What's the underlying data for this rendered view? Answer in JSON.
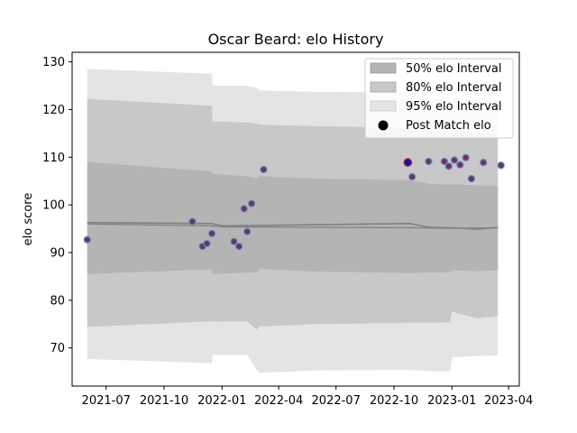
{
  "chart_data": {
    "type": "line",
    "title": "Oscar Beard: elo History",
    "xlabel": "",
    "ylabel": "elo score",
    "x_tick_labels": [
      "2021-07",
      "2021-10",
      "2022-01",
      "2022-04",
      "2022-07",
      "2022-10",
      "2023-01",
      "2023-04"
    ],
    "x_ticks": [
      "2021-07-01",
      "2021-10-01",
      "2022-01-01",
      "2022-04-01",
      "2022-07-01",
      "2022-10-01",
      "2023-01-01",
      "2023-04-01"
    ],
    "xlim": [
      "2021-05-08",
      "2023-04-18"
    ],
    "ylim": [
      62,
      132
    ],
    "y_ticks": [
      70,
      80,
      90,
      100,
      110,
      120,
      130
    ],
    "grid": false,
    "legend_position": "top-right",
    "legend": [
      "50% elo Interval",
      "80% elo Interval",
      "95% elo Interval",
      "Post Match elo"
    ],
    "colors": {
      "band50": "#b4b4b4",
      "band80": "#c8c8c8",
      "band95": "#e4e4e4",
      "center_line": "#808080",
      "point_fill": "#6b3366",
      "point_edge": "#6f8fc0",
      "highlight_point": "#1010aa"
    },
    "center_line": {
      "x": [
        "2021-06-01",
        "2021-12-15",
        "2022-01-01",
        "2022-03-01",
        "2022-10-25",
        "2022-11-28",
        "2023-01-01",
        "2023-02-10",
        "2023-03-15"
      ],
      "y": [
        96.3,
        96.1,
        95.6,
        95.7,
        96.1,
        95.3,
        95.2,
        94.9,
        95.3
      ]
    },
    "secondary_line": {
      "x": [
        "2021-06-01",
        "2021-12-15",
        "2022-01-01",
        "2022-06-01",
        "2022-11-01",
        "2023-01-01",
        "2023-03-15"
      ],
      "y": [
        96.0,
        95.6,
        95.4,
        95.3,
        95.2,
        95.1,
        95.2
      ]
    },
    "bands": [
      {
        "name": "95% elo Interval",
        "x": [
          "2021-06-01",
          "2021-12-16",
          "2021-12-17",
          "2022-02-10",
          "2022-02-25",
          "2022-03-01",
          "2022-06-01",
          "2022-10-25",
          "2022-11-28",
          "2022-12-29",
          "2023-01-01",
          "2023-02-10",
          "2023-03-15"
        ],
        "upper": [
          128.5,
          127.5,
          125.0,
          125.0,
          124.5,
          124.0,
          123.7,
          123.6,
          122.5,
          122.5,
          122.3,
          122.3,
          122.1
        ],
        "lower": [
          67.7,
          66.8,
          68.5,
          68.5,
          65.4,
          64.8,
          65.3,
          65.4,
          65.1,
          65.1,
          68.0,
          68.3,
          68.5
        ]
      },
      {
        "name": "80% elo Interval",
        "x": [
          "2021-06-01",
          "2021-12-16",
          "2021-12-17",
          "2022-02-10",
          "2022-02-25",
          "2022-03-01",
          "2022-06-01",
          "2022-10-25",
          "2022-11-28",
          "2022-12-29",
          "2023-01-01",
          "2023-02-10",
          "2023-03-15"
        ],
        "upper": [
          122.2,
          120.8,
          117.5,
          117.3,
          117.0,
          116.8,
          116.5,
          116.2,
          115.2,
          115.3,
          115.3,
          115.2,
          115.0
        ],
        "lower": [
          74.4,
          75.6,
          75.5,
          75.6,
          73.8,
          74.5,
          75.0,
          75.3,
          75.3,
          75.4,
          77.6,
          76.2,
          76.7
        ]
      },
      {
        "name": "50% elo Interval",
        "x": [
          "2021-06-01",
          "2021-12-16",
          "2021-12-17",
          "2022-02-10",
          "2022-02-25",
          "2022-03-01",
          "2022-06-01",
          "2022-10-25",
          "2022-11-28",
          "2022-12-29",
          "2023-01-01",
          "2023-02-10",
          "2023-03-15"
        ],
        "upper": [
          109.0,
          107.0,
          106.5,
          106.0,
          105.6,
          106.0,
          105.5,
          105.2,
          104.4,
          104.2,
          104.3,
          104.1,
          104.0
        ],
        "lower": [
          85.5,
          86.5,
          85.5,
          85.8,
          85.8,
          86.6,
          86.0,
          85.7,
          85.8,
          85.9,
          86.3,
          86.1,
          86.3
        ]
      }
    ],
    "points": {
      "name": "Post Match elo",
      "x": [
        "2021-06-01",
        "2021-11-15",
        "2021-12-01",
        "2021-12-08",
        "2021-12-16",
        "2022-01-20",
        "2022-01-28",
        "2022-02-05",
        "2022-02-10",
        "2022-02-17",
        "2022-03-08",
        "2022-10-23",
        "2022-10-30",
        "2022-11-25",
        "2022-12-20",
        "2022-12-27",
        "2023-01-05",
        "2023-01-14",
        "2023-01-23",
        "2023-02-01",
        "2023-02-20",
        "2023-03-20"
      ],
      "y": [
        92.7,
        96.5,
        91.3,
        91.9,
        94.0,
        92.3,
        91.3,
        99.2,
        94.4,
        100.3,
        107.4,
        108.9,
        105.9,
        109.1,
        109.1,
        108.1,
        109.4,
        108.4,
        109.9,
        105.5,
        108.9,
        108.3
      ],
      "highlight": [
        false,
        false,
        false,
        false,
        false,
        false,
        false,
        false,
        false,
        false,
        false,
        true,
        false,
        false,
        false,
        false,
        false,
        false,
        false,
        false,
        false,
        false
      ]
    }
  }
}
